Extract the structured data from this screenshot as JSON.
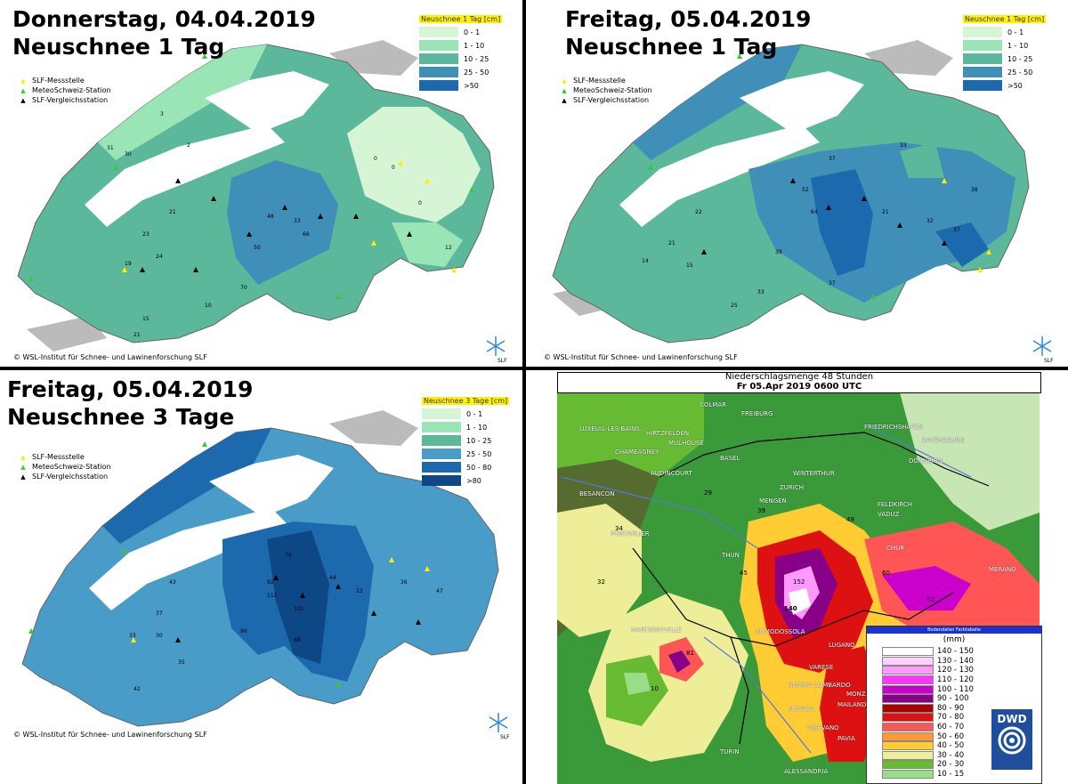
{
  "panels": [
    {
      "title_line1": "Donnerstag, 04.04.2019",
      "title_line2": "Neuschnee 1 Tag",
      "legend_title": "Neuschnee 1 Tag [cm]",
      "legend": [
        {
          "label": "0 - 1",
          "color": "#d5f5d5"
        },
        {
          "label": "1 - 10",
          "color": "#9ae5b5"
        },
        {
          "label": "10 - 25",
          "color": "#5bb89a"
        },
        {
          "label": "25 - 50",
          "color": "#3f8fb8"
        },
        {
          "label": ">50",
          "color": "#1c6aad"
        }
      ],
      "station_legend": [
        {
          "label": "SLF-Messstelle",
          "marker": "▲",
          "color": "#ffee00"
        },
        {
          "label": "MeteoSchweiz-Station",
          "marker": "▲",
          "color": "#33cc33"
        },
        {
          "label": "SLF-Vergleichsstation",
          "marker": "▲",
          "color": "#000000"
        }
      ],
      "copyright": "© WSL-Institut für Schnee- und Lawinenforschung SLF"
    },
    {
      "title_line1": "Freitag, 05.04.2019",
      "title_line2": "Neuschnee 1 Tag",
      "legend_title": "Neuschnee 1 Tag [cm]",
      "legend": [
        {
          "label": "0 - 1",
          "color": "#d5f5d5"
        },
        {
          "label": "1 - 10",
          "color": "#9ae5b5"
        },
        {
          "label": "10 - 25",
          "color": "#5bb89a"
        },
        {
          "label": "25 - 50",
          "color": "#3f8fb8"
        },
        {
          "label": ">50",
          "color": "#1c6aad"
        }
      ],
      "station_legend": [
        {
          "label": "SLF-Messstelle",
          "marker": "▲",
          "color": "#ffee00"
        },
        {
          "label": "MeteoSchweiz-Station",
          "marker": "▲",
          "color": "#33cc33"
        },
        {
          "label": "SLF-Vergleichsstation",
          "marker": "▲",
          "color": "#000000"
        }
      ],
      "copyright": "© WSL-Institut für Schnee- und Lawinenforschung SLF"
    },
    {
      "title_line1": "Freitag, 05.04.2019",
      "title_line2": "Neuschnee 3 Tage",
      "legend_title": "Neuschnee 3 Tage [cm]",
      "legend": [
        {
          "label": "0 - 1",
          "color": "#d5f5d5"
        },
        {
          "label": "1 - 10",
          "color": "#9ae5b5"
        },
        {
          "label": "10 - 25",
          "color": "#5bb89a"
        },
        {
          "label": "25 - 50",
          "color": "#4a9cc8"
        },
        {
          "label": "50 - 80",
          "color": "#1c6aad"
        },
        {
          "label": ">80",
          "color": "#0d4785"
        }
      ],
      "station_legend": [
        {
          "label": "SLF-Messstelle",
          "marker": "▲",
          "color": "#ffee00"
        },
        {
          "label": "MeteoSchweiz-Station",
          "marker": "▲",
          "color": "#33cc33"
        },
        {
          "label": "SLF-Vergleichsstation",
          "marker": "▲",
          "color": "#000000"
        }
      ],
      "copyright": "© WSL-Institut für Schnee- und Lawinenforschung SLF"
    }
  ],
  "logo_text": "SLF",
  "dwd": {
    "title_line1": "Niederschlagsmenge 48 Stunden",
    "title_line2": "Fr 05.Apr 2019 0600 UTC",
    "legend_header": "Bodendaten Farbtabelle",
    "legend_unit": "(mm)",
    "logo_text": "DWD",
    "legend": [
      {
        "label": "140 - 150",
        "color": "#ffffff"
      },
      {
        "label": "130 - 140",
        "color": "#ffd0ff"
      },
      {
        "label": "120 - 130",
        "color": "#ff99ff"
      },
      {
        "label": "110 - 120",
        "color": "#ff33ff"
      },
      {
        "label": "100 - 110",
        "color": "#cc00cc"
      },
      {
        "label": "90 - 100",
        "color": "#880088"
      },
      {
        "label": "80 - 90",
        "color": "#aa0000"
      },
      {
        "label": "70 - 80",
        "color": "#dd1111"
      },
      {
        "label": "60 - 70",
        "color": "#ff5555"
      },
      {
        "label": "50 - 60",
        "color": "#ff9933"
      },
      {
        "label": "40 - 50",
        "color": "#ffcc33"
      },
      {
        "label": "30 - 40",
        "color": "#eeee99"
      },
      {
        "label": "20 - 30",
        "color": "#66bb33"
      },
      {
        "label": "10 - 15",
        "color": "#99dd88"
      }
    ],
    "cities": [
      "COLMAR",
      "FREIBURG",
      "LUXEUIL-LES-BAINS",
      "HIRTZFELDEN",
      "MULHOUSE",
      "CHAMEAGNEY",
      "AUDINCOURT",
      "BESANCON",
      "PONTARLIER",
      "BASEL",
      "ZURICH",
      "WINTERTHUR",
      "MENGEN",
      "FRIEDRICHSHAFEN",
      "RAVENSBURG",
      "DORNBIRN",
      "FELDKIRCH",
      "VADUZ",
      "CHUR",
      "THUN",
      "MARTIGNY-VILLE",
      "DOMODOSSOLA",
      "LUGANO",
      "VARESE",
      "SOMMA LOMBARDO",
      "NOVARA",
      "MAILAND",
      "MONZA",
      "VIGEVANO",
      "PAVIA",
      "TURIN",
      "ALESSANDRIA",
      "MERANO"
    ]
  }
}
